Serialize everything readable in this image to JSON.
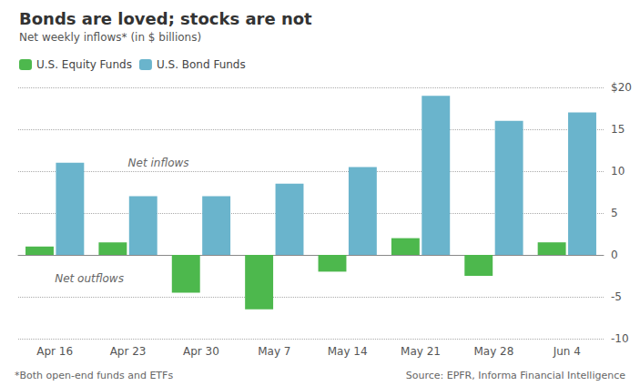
{
  "chart_data": {
    "type": "bar",
    "title": "Bonds are loved; stocks are not",
    "subtitle": "Net weekly inflows* (in $ billions)",
    "categories": [
      "Apr 16",
      "Apr 23",
      "Apr 30",
      "May 7",
      "May 14",
      "May 21",
      "May 28",
      "Jun 4"
    ],
    "series": [
      {
        "name": "U.S. Equity Funds",
        "color": "#4db84d",
        "values": [
          1.0,
          1.5,
          -4.5,
          -6.5,
          -2.0,
          2.0,
          -2.5,
          1.5
        ]
      },
      {
        "name": "U.S. Bond Funds",
        "color": "#6ab4cc",
        "values": [
          11.0,
          7.0,
          7.0,
          8.5,
          10.5,
          19.0,
          16.0,
          17.0
        ]
      }
    ],
    "ylim": [
      -10,
      20
    ],
    "yticks": [
      -10,
      -5,
      0,
      5,
      10,
      15,
      {
        "value": 20,
        "label": "$20"
      }
    ],
    "annotations": [
      "Net inflows",
      "Net outflows"
    ],
    "footnote": "*Both open-end funds and ETFs",
    "source": "Source: EPFR, Informa Financial Intelligence",
    "grid": true,
    "legend": "upper left"
  }
}
